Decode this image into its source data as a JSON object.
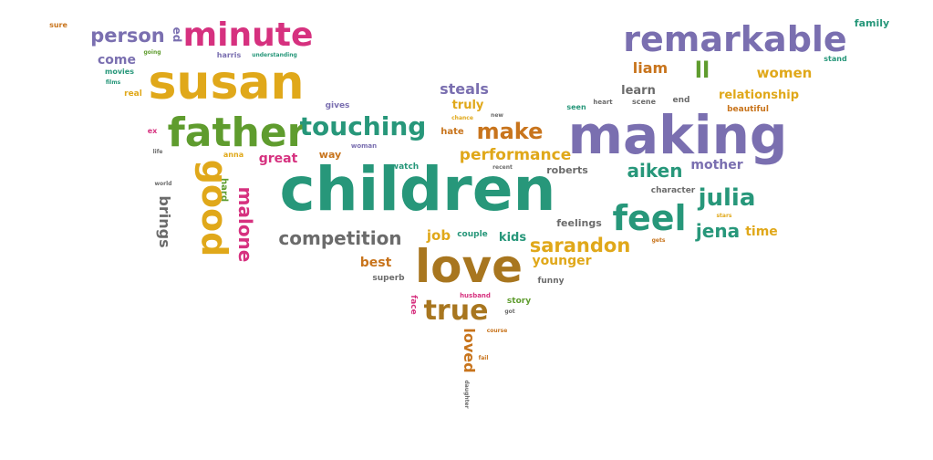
{
  "colors": {
    "orange": "#c8741c",
    "purple": "#7a6fb0",
    "pink": "#d6317f",
    "gold": "#e0a81a",
    "green": "#5f9c2e",
    "teal": "#27977a",
    "gray": "#6b6b6b",
    "brown": "#a8761f"
  },
  "words": [
    {
      "text": "sure",
      "color": "orange",
      "weight": 8
    },
    {
      "text": "person",
      "color": "purple",
      "weight": 21
    },
    {
      "text": "ed",
      "color": "purple",
      "weight": 12
    },
    {
      "text": "minute",
      "color": "pink",
      "weight": 36
    },
    {
      "text": "going",
      "color": "green",
      "weight": 6
    },
    {
      "text": "harris",
      "color": "purple",
      "weight": 8
    },
    {
      "text": "understanding",
      "color": "teal",
      "weight": 6
    },
    {
      "text": "come",
      "color": "purple",
      "weight": 14
    },
    {
      "text": "movies",
      "color": "teal",
      "weight": 8
    },
    {
      "text": "films",
      "color": "teal",
      "weight": 6
    },
    {
      "text": "susan",
      "color": "gold",
      "weight": 52
    },
    {
      "text": "real",
      "color": "gold",
      "weight": 9
    },
    {
      "text": "gives",
      "color": "purple",
      "weight": 9
    },
    {
      "text": "remarkable",
      "color": "purple",
      "weight": 38
    },
    {
      "text": "family",
      "color": "teal",
      "weight": 11
    },
    {
      "text": "stand",
      "color": "teal",
      "weight": 8
    },
    {
      "text": "liam",
      "color": "orange",
      "weight": 16
    },
    {
      "text": "ll",
      "color": "green",
      "weight": 24
    },
    {
      "text": "women",
      "color": "gold",
      "weight": 15
    },
    {
      "text": "steals",
      "color": "purple",
      "weight": 16
    },
    {
      "text": "learn",
      "color": "gray",
      "weight": 13
    },
    {
      "text": "relationship",
      "color": "gold",
      "weight": 13
    },
    {
      "text": "truly",
      "color": "gold",
      "weight": 13
    },
    {
      "text": "new",
      "color": "gray",
      "weight": 6
    },
    {
      "text": "chance",
      "color": "gold",
      "weight": 6
    },
    {
      "text": "seen",
      "color": "teal",
      "weight": 8
    },
    {
      "text": "heart",
      "color": "gray",
      "weight": 7
    },
    {
      "text": "scene",
      "color": "gray",
      "weight": 8
    },
    {
      "text": "end",
      "color": "gray",
      "weight": 9
    },
    {
      "text": "beautiful",
      "color": "orange",
      "weight": 9
    },
    {
      "text": "father",
      "color": "green",
      "weight": 44
    },
    {
      "text": "touching",
      "color": "teal",
      "weight": 28
    },
    {
      "text": "make",
      "color": "orange",
      "weight": 24
    },
    {
      "text": "making",
      "color": "purple",
      "weight": 58
    },
    {
      "text": "ex",
      "color": "pink",
      "weight": 8
    },
    {
      "text": "hate",
      "color": "orange",
      "weight": 10
    },
    {
      "text": "life",
      "color": "gray",
      "weight": 6
    },
    {
      "text": "anna",
      "color": "gold",
      "weight": 8
    },
    {
      "text": "great",
      "color": "pink",
      "weight": 14
    },
    {
      "text": "way",
      "color": "orange",
      "weight": 11
    },
    {
      "text": "woman",
      "color": "purple",
      "weight": 7
    },
    {
      "text": "performance",
      "color": "gold",
      "weight": 17
    },
    {
      "text": "recent",
      "color": "gray",
      "weight": 6
    },
    {
      "text": "watch",
      "color": "teal",
      "weight": 9
    },
    {
      "text": "roberts",
      "color": "gray",
      "weight": 11
    },
    {
      "text": "mother",
      "color": "purple",
      "weight": 14
    },
    {
      "text": "aiken",
      "color": "teal",
      "weight": 20
    },
    {
      "text": "world",
      "color": "gray",
      "weight": 6
    },
    {
      "text": "hard",
      "color": "green",
      "weight": 10
    },
    {
      "text": "good",
      "color": "gold",
      "weight": 38
    },
    {
      "text": "brings",
      "color": "gray",
      "weight": 16
    },
    {
      "text": "malone",
      "color": "pink",
      "weight": 20
    },
    {
      "text": "children",
      "color": "teal",
      "weight": 66
    },
    {
      "text": "character",
      "color": "gray",
      "weight": 9
    },
    {
      "text": "julia",
      "color": "teal",
      "weight": 26
    },
    {
      "text": "stars",
      "color": "gold",
      "weight": 6
    },
    {
      "text": "feel",
      "color": "teal",
      "weight": 38
    },
    {
      "text": "feelings",
      "color": "gray",
      "weight": 11
    },
    {
      "text": "jena",
      "color": "teal",
      "weight": 20
    },
    {
      "text": "time",
      "color": "gold",
      "weight": 14
    },
    {
      "text": "gets",
      "color": "orange",
      "weight": 6
    },
    {
      "text": "competition",
      "color": "gray",
      "weight": 20
    },
    {
      "text": "job",
      "color": "gold",
      "weight": 15
    },
    {
      "text": "couple",
      "color": "teal",
      "weight": 9
    },
    {
      "text": "kids",
      "color": "teal",
      "weight": 13
    },
    {
      "text": "sarandon",
      "color": "gold",
      "weight": 21
    },
    {
      "text": "love",
      "color": "brown",
      "weight": 50
    },
    {
      "text": "best",
      "color": "orange",
      "weight": 14
    },
    {
      "text": "younger",
      "color": "gold",
      "weight": 14
    },
    {
      "text": "superb",
      "color": "gray",
      "weight": 9
    },
    {
      "text": "funny",
      "color": "gray",
      "weight": 9
    },
    {
      "text": "face",
      "color": "pink",
      "weight": 9
    },
    {
      "text": "husband",
      "color": "pink",
      "weight": 7
    },
    {
      "text": "true",
      "color": "brown",
      "weight": 30
    },
    {
      "text": "story",
      "color": "green",
      "weight": 9
    },
    {
      "text": "got",
      "color": "gray",
      "weight": 6
    },
    {
      "text": "loved",
      "color": "orange",
      "weight": 16
    },
    {
      "text": "course",
      "color": "orange",
      "weight": 6
    },
    {
      "text": "fail",
      "color": "orange",
      "weight": 6
    },
    {
      "text": "daughter",
      "color": "gray",
      "weight": 6
    }
  ]
}
